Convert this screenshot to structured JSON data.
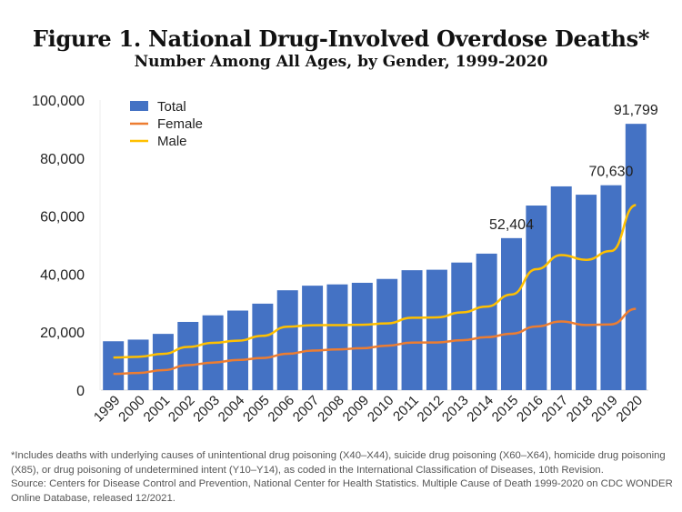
{
  "chart_data": {
    "type": "bar",
    "title": "Figure 1. National Drug-Involved Overdose Deaths*",
    "subtitle": "Number Among All Ages, by Gender, 1999-2020",
    "xlabel": "",
    "ylabel": "",
    "ylim": [
      0,
      100000
    ],
    "yticks": [
      "0",
      "20,000",
      "40,000",
      "60,000",
      "80,000",
      "100,000"
    ],
    "grid": false,
    "legend": "top-left",
    "categories": [
      "1999",
      "2000",
      "2001",
      "2002",
      "2003",
      "2004",
      "2005",
      "2006",
      "2007",
      "2008",
      "2009",
      "2010",
      "2011",
      "2012",
      "2013",
      "2014",
      "2015",
      "2016",
      "2017",
      "2018",
      "2019",
      "2020"
    ],
    "series": [
      {
        "name": "Total",
        "type": "bar",
        "color": "#4472C4",
        "values": [
          16849,
          17415,
          19394,
          23518,
          25785,
          27424,
          29813,
          34425,
          36010,
          36450,
          37004,
          38329,
          41340,
          41502,
          43982,
          47055,
          52404,
          63632,
          70237,
          67367,
          70630,
          91799
        ]
      },
      {
        "name": "Female",
        "type": "line",
        "color": "#ED7D31",
        "values": [
          5591,
          5923,
          6881,
          8639,
          9499,
          10385,
          11089,
          12541,
          13617,
          14029,
          14462,
          15323,
          16385,
          16421,
          17183,
          18243,
          19447,
          21939,
          23685,
          22445,
          22666,
          28000
        ]
      },
      {
        "name": "Male",
        "type": "line",
        "color": "#FFC000",
        "values": [
          11258,
          11492,
          12513,
          14879,
          16286,
          17039,
          18724,
          21884,
          22393,
          22421,
          22542,
          23006,
          24955,
          25081,
          26799,
          28812,
          32957,
          41693,
          46552,
          44922,
          47964,
          63799
        ]
      }
    ],
    "data_labels": [
      {
        "category": "2015",
        "text": "52,404"
      },
      {
        "category": "2019",
        "text": "70,630"
      },
      {
        "category": "2020",
        "text": "91,799"
      }
    ]
  },
  "footnote": {
    "line1": "*Includes deaths with underlying causes of unintentional drug poisoning (X40–X44), suicide drug poisoning (X60–X64), homicide drug poisoning (X85), or drug poisoning of undetermined intent (Y10–Y14), as coded in the International Classification of Diseases, 10th Revision.",
    "line2": "Source: Centers for Disease Control and Prevention, National Center for Health Statistics. Multiple Cause of Death 1999-2020 on CDC WONDER Online Database, released 12/2021."
  }
}
